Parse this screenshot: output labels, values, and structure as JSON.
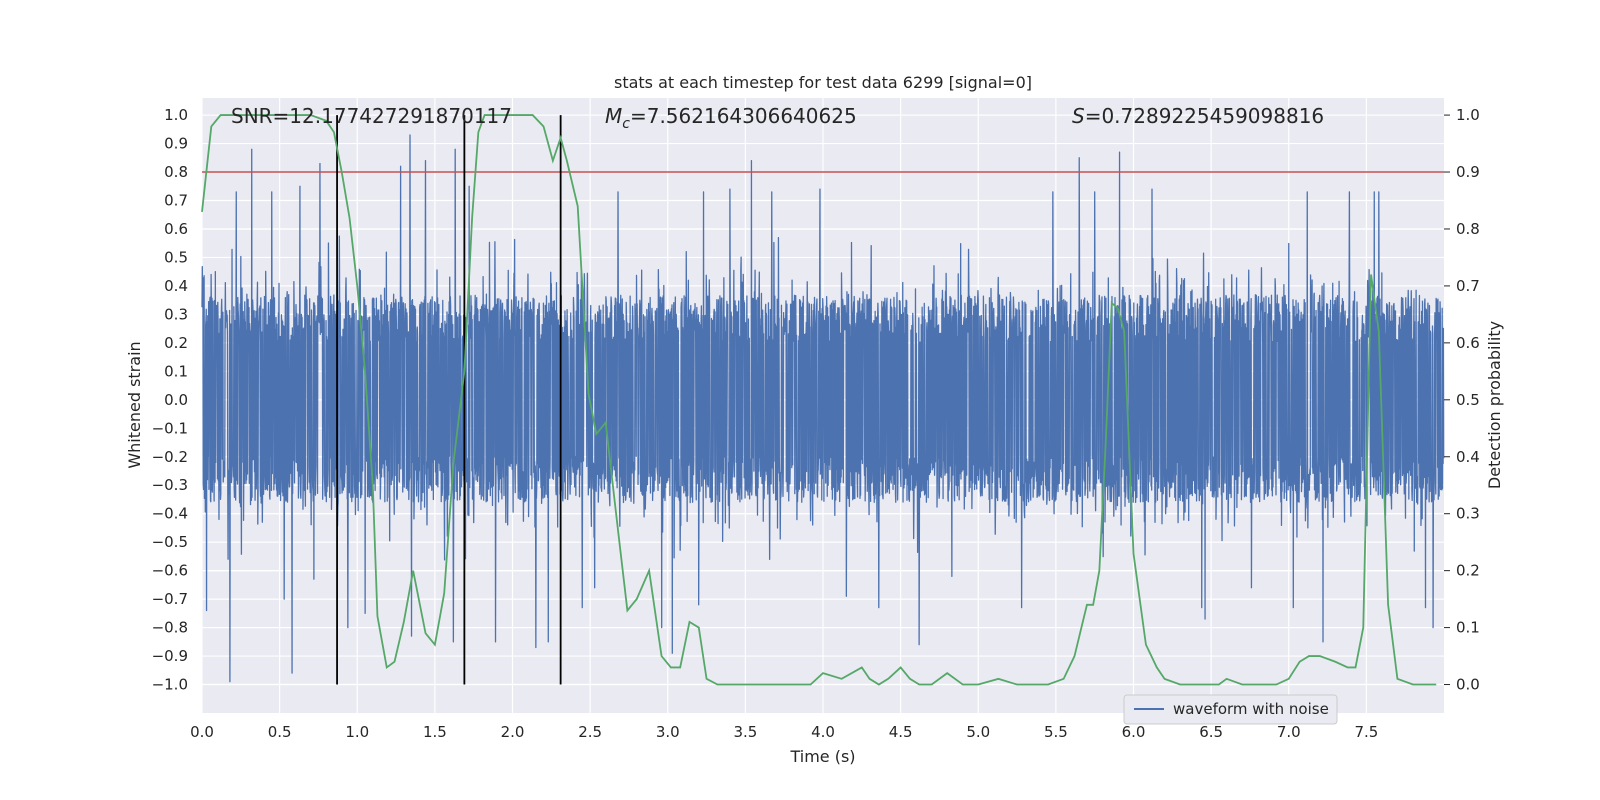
{
  "chart_data": {
    "type": "line",
    "title": "stats at each timestep for test data 6299 [signal=0]",
    "xlabel": "Time (s)",
    "ylabel": "Whitened strain",
    "ylabel_right": "Detection probability",
    "xlim": [
      0.0,
      8.0
    ],
    "ylim": [
      -1.1,
      1.06
    ],
    "ylim_right": [
      -0.05,
      1.03
    ],
    "x_ticks": [
      0.0,
      0.5,
      1.0,
      1.5,
      2.0,
      2.5,
      3.0,
      3.5,
      4.0,
      4.5,
      5.0,
      5.5,
      6.0,
      6.5,
      7.0,
      7.5
    ],
    "x_tick_labels": [
      "0.0",
      "0.5",
      "1.0",
      "1.5",
      "2.0",
      "2.5",
      "3.0",
      "3.5",
      "4.0",
      "4.5",
      "5.0",
      "5.5",
      "6.0",
      "6.5",
      "7.0",
      "7.5"
    ],
    "y_ticks": [
      1.0,
      0.9,
      0.8,
      0.7,
      0.6,
      0.5,
      0.4,
      0.3,
      0.2,
      0.1,
      0.0,
      -0.1,
      -0.2,
      -0.3,
      -0.4,
      -0.5,
      -0.6,
      -0.7,
      -0.8,
      -0.9,
      -1.0
    ],
    "y_tick_labels": [
      "1.0",
      "0.9",
      "0.8",
      "0.7",
      "0.6",
      "0.5",
      "0.4",
      "0.3",
      "0.2",
      "0.1",
      "0.0",
      "−0.1",
      "−0.2",
      "−0.3",
      "−0.4",
      "−0.5",
      "−0.6",
      "−0.7",
      "−0.8",
      "−0.9",
      "−1.0"
    ],
    "y_right_ticks": [
      1.0,
      0.9,
      0.8,
      0.7,
      0.6,
      0.5,
      0.4,
      0.3,
      0.2,
      0.1,
      0.0
    ],
    "y_right_tick_labels": [
      "1.0",
      "0.9",
      "0.8",
      "0.7",
      "0.6",
      "0.5",
      "0.4",
      "0.3",
      "0.2",
      "0.1",
      "0.0"
    ],
    "annotations": [
      {
        "name": "snr",
        "text": "SNR=12.177427291870117"
      },
      {
        "name": "chirp-mass",
        "prefix": "M",
        "subscript": "c",
        "text": "=7.562164306640625"
      },
      {
        "name": "statistic",
        "prefix": "S",
        "text": "=0.7289225459098816"
      }
    ],
    "threshold": {
      "value": 0.9,
      "axis": "right",
      "color": "#c44e52"
    },
    "vlines": [
      0.87,
      1.69,
      2.31
    ],
    "legend": {
      "position": "lower-right",
      "entries": [
        "waveform with noise"
      ]
    },
    "grid": true,
    "series": [
      {
        "name": "waveform with noise",
        "axis": "left",
        "color": "#4c72b0",
        "kind": "noise-waveform",
        "sample_rate": 512,
        "envelope_upper": 0.46,
        "envelope_lower": -0.45,
        "peaks": [
          {
            "x": 0.03,
            "y": -0.74
          },
          {
            "x": 0.18,
            "y": -0.99
          },
          {
            "x": 0.22,
            "y": 0.73
          },
          {
            "x": 0.32,
            "y": 0.88
          },
          {
            "x": 0.45,
            "y": 0.73
          },
          {
            "x": 0.53,
            "y": -0.7
          },
          {
            "x": 0.58,
            "y": -0.96
          },
          {
            "x": 0.63,
            "y": 0.75
          },
          {
            "x": 0.72,
            "y": -0.63
          },
          {
            "x": 0.76,
            "y": 0.83
          },
          {
            "x": 0.94,
            "y": -0.8
          },
          {
            "x": 1.05,
            "y": -0.75
          },
          {
            "x": 1.28,
            "y": 0.82
          },
          {
            "x": 1.34,
            "y": 0.93
          },
          {
            "x": 1.35,
            "y": -0.83
          },
          {
            "x": 1.44,
            "y": 0.84
          },
          {
            "x": 1.62,
            "y": -0.85
          },
          {
            "x": 1.63,
            "y": 0.88
          },
          {
            "x": 1.72,
            "y": 0.75
          },
          {
            "x": 1.89,
            "y": -0.85
          },
          {
            "x": 2.15,
            "y": -0.87
          },
          {
            "x": 2.23,
            "y": -0.85
          },
          {
            "x": 2.45,
            "y": -0.73
          },
          {
            "x": 2.53,
            "y": -0.66
          },
          {
            "x": 2.68,
            "y": 0.73
          },
          {
            "x": 2.96,
            "y": -0.8
          },
          {
            "x": 3.03,
            "y": -0.89
          },
          {
            "x": 3.2,
            "y": -0.72
          },
          {
            "x": 3.23,
            "y": 0.73
          },
          {
            "x": 3.4,
            "y": 0.74
          },
          {
            "x": 3.54,
            "y": 0.84
          },
          {
            "x": 3.67,
            "y": 0.73
          },
          {
            "x": 3.98,
            "y": 0.74
          },
          {
            "x": 4.15,
            "y": -0.69
          },
          {
            "x": 4.36,
            "y": -0.73
          },
          {
            "x": 4.62,
            "y": -0.86
          },
          {
            "x": 4.83,
            "y": -0.62
          },
          {
            "x": 5.28,
            "y": -0.73
          },
          {
            "x": 5.48,
            "y": 0.73
          },
          {
            "x": 5.65,
            "y": 0.85
          },
          {
            "x": 5.75,
            "y": 0.73
          },
          {
            "x": 5.91,
            "y": 0.87
          },
          {
            "x": 6.12,
            "y": 0.74
          },
          {
            "x": 6.44,
            "y": -0.73
          },
          {
            "x": 6.46,
            "y": -0.77
          },
          {
            "x": 6.76,
            "y": -0.66
          },
          {
            "x": 7.03,
            "y": -0.73
          },
          {
            "x": 7.12,
            "y": 0.73
          },
          {
            "x": 7.22,
            "y": -0.85
          },
          {
            "x": 7.39,
            "y": 0.73
          },
          {
            "x": 7.55,
            "y": 0.73
          },
          {
            "x": 7.58,
            "y": 0.73
          },
          {
            "x": 7.88,
            "y": -0.73
          },
          {
            "x": 7.93,
            "y": -0.8
          }
        ]
      },
      {
        "name": "detection probability",
        "axis": "right",
        "color": "#55a868",
        "x": [
          0.0,
          0.06,
          0.12,
          0.2,
          0.3,
          0.4,
          0.5,
          0.6,
          0.7,
          0.8,
          0.85,
          0.9,
          0.95,
          1.0,
          1.05,
          1.1,
          1.13,
          1.19,
          1.24,
          1.3,
          1.36,
          1.44,
          1.5,
          1.56,
          1.62,
          1.69,
          1.74,
          1.78,
          1.82,
          1.9,
          2.0,
          2.13,
          2.2,
          2.26,
          2.31,
          2.35,
          2.42,
          2.49,
          2.54,
          2.6,
          2.68,
          2.74,
          2.8,
          2.88,
          2.96,
          3.02,
          3.08,
          3.14,
          3.2,
          3.25,
          3.32,
          3.4,
          3.55,
          3.7,
          3.85,
          3.92,
          4.0,
          4.12,
          4.25,
          4.3,
          4.36,
          4.42,
          4.5,
          4.56,
          4.62,
          4.7,
          4.8,
          4.9,
          5.0,
          5.13,
          5.25,
          5.35,
          5.45,
          5.55,
          5.62,
          5.7,
          5.74,
          5.78,
          5.82,
          5.86,
          5.9,
          5.94,
          6.0,
          6.08,
          6.15,
          6.2,
          6.3,
          6.45,
          6.55,
          6.6,
          6.7,
          6.8,
          6.92,
          7.0,
          7.07,
          7.13,
          7.2,
          7.3,
          7.38,
          7.43,
          7.48,
          7.53,
          7.58,
          7.64,
          7.7,
          7.8,
          7.9,
          7.95
        ],
        "values": [
          0.83,
          0.98,
          1.0,
          1.0,
          1.0,
          1.0,
          1.0,
          1.0,
          1.0,
          0.99,
          0.97,
          0.9,
          0.82,
          0.7,
          0.55,
          0.35,
          0.12,
          0.03,
          0.04,
          0.11,
          0.2,
          0.09,
          0.07,
          0.16,
          0.39,
          0.55,
          0.82,
          0.97,
          1.0,
          1.0,
          1.0,
          1.0,
          0.98,
          0.92,
          0.96,
          0.92,
          0.84,
          0.51,
          0.44,
          0.46,
          0.27,
          0.13,
          0.15,
          0.2,
          0.05,
          0.03,
          0.03,
          0.11,
          0.1,
          0.01,
          0.0,
          0.0,
          0.0,
          0.0,
          0.0,
          0.0,
          0.02,
          0.01,
          0.03,
          0.01,
          0.0,
          0.01,
          0.03,
          0.01,
          0.0,
          0.0,
          0.02,
          0.0,
          0.0,
          0.01,
          0.0,
          0.0,
          0.0,
          0.01,
          0.05,
          0.14,
          0.14,
          0.2,
          0.42,
          0.67,
          0.66,
          0.62,
          0.23,
          0.07,
          0.03,
          0.01,
          0.0,
          0.0,
          0.0,
          0.01,
          0.0,
          0.0,
          0.0,
          0.01,
          0.04,
          0.05,
          0.05,
          0.04,
          0.03,
          0.03,
          0.1,
          0.72,
          0.62,
          0.14,
          0.01,
          0.0,
          0.0,
          0.0
        ]
      }
    ]
  }
}
